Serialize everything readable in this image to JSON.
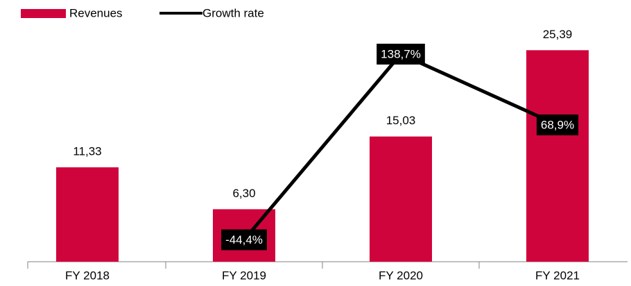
{
  "chart_data": {
    "type": "bar-line",
    "categories": [
      "FY 2018",
      "FY 2019",
      "FY 2020",
      "FY 2021"
    ],
    "series": [
      {
        "name": "Revenues",
        "type": "bar",
        "color": "#d0043c",
        "values": [
          11.33,
          6.3,
          15.03,
          25.39
        ],
        "value_labels": [
          "11,33",
          "6,30",
          "15,03",
          "25,39"
        ]
      },
      {
        "name": "Growth rate",
        "type": "line",
        "axis": "y2",
        "color": "#000000",
        "values": [
          null,
          -44.4,
          138.7,
          68.9
        ],
        "value_labels": [
          null,
          "-44,4%",
          "138,7%",
          "68,9%"
        ]
      }
    ],
    "ylim": [
      0,
      28
    ],
    "y2lim": [
      -66,
      164
    ]
  }
}
